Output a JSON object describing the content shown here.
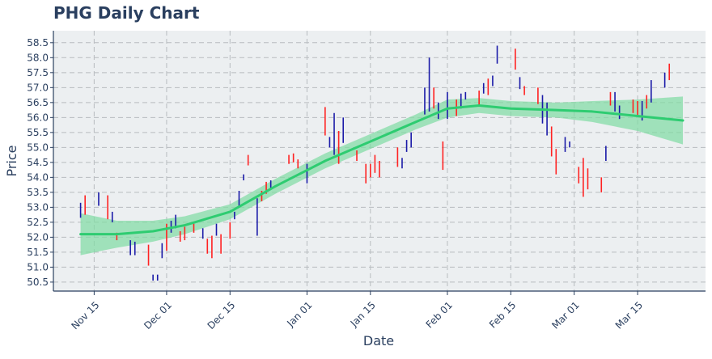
{
  "chart_data": {
    "type": "ohlc",
    "title": "PHG Daily Chart",
    "xlabel": "Date",
    "ylabel": "Price",
    "ylim": [
      50.2,
      58.9
    ],
    "xlim": [
      "2020-11-06",
      "2021-03-30"
    ],
    "yticks": [
      50.5,
      51.0,
      51.5,
      52.0,
      52.5,
      53.0,
      53.5,
      54.0,
      54.5,
      55.0,
      55.5,
      56.0,
      56.5,
      57.0,
      57.5,
      58.0,
      58.5
    ],
    "ytick_labels": [
      "50.5",
      "51.0",
      "51.5",
      "52.0",
      "52.5",
      "53.0",
      "53.5",
      "54.0",
      "54.5",
      "55.0",
      "55.5",
      "56.0",
      "56.5",
      "57.0",
      "57.5",
      "58.0",
      "58.5"
    ],
    "xticks": [
      "2020-11-15",
      "2020-12-01",
      "2020-12-15",
      "2021-01-01",
      "2021-01-15",
      "2021-02-01",
      "2021-02-15",
      "2021-03-01",
      "2021-03-15"
    ],
    "xtick_labels": [
      "Nov 15",
      "Dec 01",
      "Dec 15",
      "Jan 01",
      "Jan 15",
      "Feb 01",
      "Feb 15",
      "Mar 01",
      "Mar 15"
    ],
    "grid": true,
    "colors": {
      "up": "#1a1aa8",
      "down": "#ff2222",
      "trend": "#2ecc71",
      "band": "#7fdba2",
      "plot_bg": "#eceff1",
      "grid": "#b8bcc0",
      "text": "#2a3f5f"
    },
    "ohlc": [
      {
        "date": "2020-11-12",
        "low": 52.65,
        "high": 53.15,
        "dir": "up"
      },
      {
        "date": "2020-11-13",
        "low": 52.75,
        "high": 53.4,
        "dir": "down"
      },
      {
        "date": "2020-11-16",
        "low": 53.05,
        "high": 53.5,
        "dir": "up"
      },
      {
        "date": "2020-11-18",
        "low": 52.6,
        "high": 53.4,
        "dir": "down"
      },
      {
        "date": "2020-11-19",
        "low": 52.5,
        "high": 52.85,
        "dir": "up"
      },
      {
        "date": "2020-11-20",
        "low": 51.9,
        "high": 52.15,
        "dir": "down"
      },
      {
        "date": "2020-11-23",
        "low": 51.4,
        "high": 51.9,
        "dir": "up"
      },
      {
        "date": "2020-11-24",
        "low": 51.4,
        "high": 51.85,
        "dir": "up"
      },
      {
        "date": "2020-11-27",
        "low": 51.05,
        "high": 51.75,
        "dir": "down"
      },
      {
        "date": "2020-11-28",
        "low": 50.55,
        "high": 50.75,
        "dir": "up"
      },
      {
        "date": "2020-11-29",
        "low": 50.55,
        "high": 50.75,
        "dir": "up"
      },
      {
        "date": "2020-11-30",
        "low": 51.3,
        "high": 51.8,
        "dir": "up"
      },
      {
        "date": "2020-12-01",
        "low": 51.55,
        "high": 52.45,
        "dir": "down"
      },
      {
        "date": "2020-12-02",
        "low": 52.15,
        "high": 52.55,
        "dir": "up"
      },
      {
        "date": "2020-12-03",
        "low": 52.3,
        "high": 52.75,
        "dir": "up"
      },
      {
        "date": "2020-12-04",
        "low": 51.85,
        "high": 52.2,
        "dir": "down"
      },
      {
        "date": "2020-12-05",
        "low": 51.9,
        "high": 52.35,
        "dir": "down"
      },
      {
        "date": "2020-12-07",
        "low": 52.15,
        "high": 52.45,
        "dir": "down"
      },
      {
        "date": "2020-12-09",
        "low": 51.95,
        "high": 52.3,
        "dir": "up"
      },
      {
        "date": "2020-12-10",
        "low": 51.45,
        "high": 51.95,
        "dir": "down"
      },
      {
        "date": "2020-12-11",
        "low": 51.3,
        "high": 52.05,
        "dir": "down"
      },
      {
        "date": "2020-12-12",
        "low": 52.05,
        "high": 52.45,
        "dir": "up"
      },
      {
        "date": "2020-12-13",
        "low": 51.45,
        "high": 52.1,
        "dir": "down"
      },
      {
        "date": "2020-12-15",
        "low": 51.95,
        "high": 52.5,
        "dir": "down"
      },
      {
        "date": "2020-12-16",
        "low": 52.6,
        "high": 52.85,
        "dir": "up"
      },
      {
        "date": "2020-12-17",
        "low": 53.05,
        "high": 53.55,
        "dir": "up"
      },
      {
        "date": "2020-12-18",
        "low": 53.9,
        "high": 54.1,
        "dir": "up"
      },
      {
        "date": "2020-12-19",
        "low": 54.4,
        "high": 54.75,
        "dir": "down"
      },
      {
        "date": "2020-12-21",
        "low": 52.05,
        "high": 53.3,
        "dir": "up"
      },
      {
        "date": "2020-12-22",
        "low": 53.2,
        "high": 53.55,
        "dir": "down"
      },
      {
        "date": "2020-12-23",
        "low": 53.45,
        "high": 53.85,
        "dir": "down"
      },
      {
        "date": "2020-12-24",
        "low": 53.65,
        "high": 53.9,
        "dir": "up"
      },
      {
        "date": "2020-12-28",
        "low": 54.45,
        "high": 54.75,
        "dir": "down"
      },
      {
        "date": "2020-12-29",
        "low": 54.5,
        "high": 54.8,
        "dir": "down"
      },
      {
        "date": "2020-12-30",
        "low": 54.3,
        "high": 54.6,
        "dir": "down"
      },
      {
        "date": "2021-01-01",
        "low": 53.8,
        "high": 54.45,
        "dir": "up"
      },
      {
        "date": "2021-01-05",
        "low": 55.4,
        "high": 56.35,
        "dir": "down"
      },
      {
        "date": "2021-01-06",
        "low": 55.0,
        "high": 55.35,
        "dir": "up"
      },
      {
        "date": "2021-01-07",
        "low": 54.75,
        "high": 56.15,
        "dir": "up"
      },
      {
        "date": "2021-01-08",
        "low": 54.45,
        "high": 55.55,
        "dir": "down"
      },
      {
        "date": "2021-01-09",
        "low": 55.15,
        "high": 56.0,
        "dir": "up"
      },
      {
        "date": "2021-01-12",
        "low": 54.55,
        "high": 54.9,
        "dir": "down"
      },
      {
        "date": "2021-01-14",
        "low": 53.8,
        "high": 54.45,
        "dir": "down"
      },
      {
        "date": "2021-01-15",
        "low": 54.0,
        "high": 54.45,
        "dir": "down"
      },
      {
        "date": "2021-01-16",
        "low": 54.15,
        "high": 54.75,
        "dir": "down"
      },
      {
        "date": "2021-01-17",
        "low": 54.0,
        "high": 54.55,
        "dir": "down"
      },
      {
        "date": "2021-01-21",
        "low": 54.35,
        "high": 55.0,
        "dir": "down"
      },
      {
        "date": "2021-01-22",
        "low": 54.3,
        "high": 54.65,
        "dir": "up"
      },
      {
        "date": "2021-01-23",
        "low": 54.85,
        "high": 55.25,
        "dir": "up"
      },
      {
        "date": "2021-01-24",
        "low": 55.0,
        "high": 55.5,
        "dir": "up"
      },
      {
        "date": "2021-01-27",
        "low": 56.1,
        "high": 57.0,
        "dir": "up"
      },
      {
        "date": "2021-01-28",
        "low": 56.2,
        "high": 58.0,
        "dir": "up"
      },
      {
        "date": "2021-01-29",
        "low": 56.3,
        "high": 57.0,
        "dir": "down"
      },
      {
        "date": "2021-01-30",
        "low": 55.95,
        "high": 56.5,
        "dir": "up"
      },
      {
        "date": "2021-01-31",
        "low": 54.25,
        "high": 55.2,
        "dir": "down"
      },
      {
        "date": "2021-02-01",
        "low": 55.95,
        "high": 56.85,
        "dir": "up"
      },
      {
        "date": "2021-02-03",
        "low": 56.05,
        "high": 56.6,
        "dir": "down"
      },
      {
        "date": "2021-02-04",
        "low": 56.3,
        "high": 56.8,
        "dir": "up"
      },
      {
        "date": "2021-02-05",
        "low": 56.6,
        "high": 56.85,
        "dir": "up"
      },
      {
        "date": "2021-02-08",
        "low": 56.4,
        "high": 56.9,
        "dir": "down"
      },
      {
        "date": "2021-02-09",
        "low": 56.8,
        "high": 57.15,
        "dir": "up"
      },
      {
        "date": "2021-02-10",
        "low": 56.75,
        "high": 57.3,
        "dir": "down"
      },
      {
        "date": "2021-02-11",
        "low": 57.05,
        "high": 57.4,
        "dir": "up"
      },
      {
        "date": "2021-02-12",
        "low": 57.8,
        "high": 58.4,
        "dir": "up"
      },
      {
        "date": "2021-02-16",
        "low": 57.6,
        "high": 58.3,
        "dir": "down"
      },
      {
        "date": "2021-02-17",
        "low": 56.95,
        "high": 57.35,
        "dir": "up"
      },
      {
        "date": "2021-02-18",
        "low": 56.75,
        "high": 57.05,
        "dir": "down"
      },
      {
        "date": "2021-02-21",
        "low": 56.45,
        "high": 57.0,
        "dir": "down"
      },
      {
        "date": "2021-02-22",
        "low": 55.8,
        "high": 56.75,
        "dir": "up"
      },
      {
        "date": "2021-02-23",
        "low": 55.4,
        "high": 56.5,
        "dir": "up"
      },
      {
        "date": "2021-02-24",
        "low": 54.7,
        "high": 55.7,
        "dir": "down"
      },
      {
        "date": "2021-02-25",
        "low": 54.1,
        "high": 54.95,
        "dir": "down"
      },
      {
        "date": "2021-02-27",
        "low": 54.85,
        "high": 55.35,
        "dir": "up"
      },
      {
        "date": "2021-02-28",
        "low": 55.0,
        "high": 55.2,
        "dir": "up"
      },
      {
        "date": "2021-03-02",
        "low": 53.8,
        "high": 54.35,
        "dir": "down"
      },
      {
        "date": "2021-03-03",
        "low": 53.35,
        "high": 54.65,
        "dir": "down"
      },
      {
        "date": "2021-03-04",
        "low": 53.6,
        "high": 54.3,
        "dir": "down"
      },
      {
        "date": "2021-03-07",
        "low": 53.5,
        "high": 54.0,
        "dir": "down"
      },
      {
        "date": "2021-03-08",
        "low": 54.55,
        "high": 55.05,
        "dir": "up"
      },
      {
        "date": "2021-03-09",
        "low": 56.4,
        "high": 56.85,
        "dir": "down"
      },
      {
        "date": "2021-03-10",
        "low": 56.2,
        "high": 56.85,
        "dir": "up"
      },
      {
        "date": "2021-03-11",
        "low": 55.95,
        "high": 56.4,
        "dir": "up"
      },
      {
        "date": "2021-03-14",
        "low": 56.15,
        "high": 56.6,
        "dir": "down"
      },
      {
        "date": "2021-03-15",
        "low": 56.05,
        "high": 56.55,
        "dir": "down"
      },
      {
        "date": "2021-03-16",
        "low": 55.9,
        "high": 56.55,
        "dir": "up"
      },
      {
        "date": "2021-03-17",
        "low": 56.3,
        "high": 56.75,
        "dir": "down"
      },
      {
        "date": "2021-03-18",
        "low": 56.5,
        "high": 57.25,
        "dir": "up"
      },
      {
        "date": "2021-03-21",
        "low": 57.0,
        "high": 57.5,
        "dir": "up"
      },
      {
        "date": "2021-03-22",
        "low": 57.25,
        "high": 57.8,
        "dir": "down"
      }
    ],
    "trend": [
      {
        "date": "2020-11-12",
        "value": 52.1,
        "lower": 51.4,
        "upper": 52.8
      },
      {
        "date": "2020-11-20",
        "value": 52.1,
        "lower": 51.65,
        "upper": 52.55
      },
      {
        "date": "2020-11-28",
        "value": 52.2,
        "lower": 51.85,
        "upper": 52.55
      },
      {
        "date": "2020-12-05",
        "value": 52.4,
        "lower": 52.1,
        "upper": 52.7
      },
      {
        "date": "2020-12-15",
        "value": 52.85,
        "lower": 52.6,
        "upper": 53.1
      },
      {
        "date": "2020-12-25",
        "value": 53.7,
        "lower": 53.45,
        "upper": 53.95
      },
      {
        "date": "2021-01-05",
        "value": 54.55,
        "lower": 54.3,
        "upper": 54.8
      },
      {
        "date": "2021-01-15",
        "value": 55.2,
        "lower": 54.95,
        "upper": 55.45
      },
      {
        "date": "2021-01-25",
        "value": 55.85,
        "lower": 55.6,
        "upper": 56.1
      },
      {
        "date": "2021-02-01",
        "value": 56.3,
        "lower": 56.0,
        "upper": 56.6
      },
      {
        "date": "2021-02-08",
        "value": 56.4,
        "lower": 56.15,
        "upper": 56.65
      },
      {
        "date": "2021-02-15",
        "value": 56.3,
        "lower": 56.05,
        "upper": 56.55
      },
      {
        "date": "2021-02-25",
        "value": 56.25,
        "lower": 56.0,
        "upper": 56.5
      },
      {
        "date": "2021-03-05",
        "value": 56.2,
        "lower": 55.85,
        "upper": 56.55
      },
      {
        "date": "2021-03-15",
        "value": 56.05,
        "lower": 55.55,
        "upper": 56.6
      },
      {
        "date": "2021-03-25",
        "value": 55.9,
        "lower": 55.1,
        "upper": 56.7
      }
    ]
  }
}
